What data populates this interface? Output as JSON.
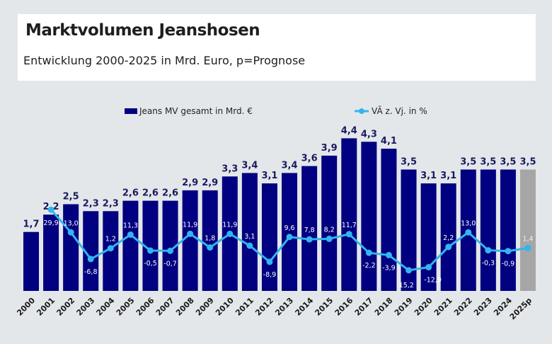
{
  "header": {
    "title": "Marktvolumen Jeanshosen",
    "subtitle": "Entwicklung 2000-2025 in Mrd. Euro, p=Prognose"
  },
  "chart_data": {
    "type": "bar",
    "title": "Marktvolumen Jeanshosen",
    "subtitle": "Entwicklung 2000-2025 in Mrd. Euro, p=Prognose",
    "categories": [
      "2000",
      "2001",
      "2002",
      "2003",
      "2004",
      "2005",
      "2006",
      "2007",
      "2008",
      "2009",
      "2010",
      "2011",
      "2012",
      "2013",
      "2014",
      "2015",
      "2016",
      "2017",
      "2018",
      "2019",
      "2020",
      "2021",
      "2022",
      "2023",
      "2024",
      "2025p"
    ],
    "series": [
      {
        "name": "Jeans MV gesamt in Mrd. €",
        "type": "bar",
        "color": "#000080",
        "forecast_color": "#a6a6a6",
        "values": [
          1.7,
          2.2,
          2.5,
          2.3,
          2.3,
          2.6,
          2.6,
          2.6,
          2.9,
          2.9,
          3.3,
          3.4,
          3.1,
          3.4,
          3.6,
          3.9,
          4.4,
          4.3,
          4.1,
          3.5,
          3.1,
          3.1,
          3.5,
          3.5,
          3.5,
          3.5
        ]
      },
      {
        "name": "VÃ z. Vj. in %",
        "type": "line",
        "color": "#33b5ee",
        "values": [
          null,
          29.9,
          13.0,
          -6.8,
          1.2,
          11.3,
          -0.5,
          -0.7,
          11.9,
          1.8,
          11.9,
          3.1,
          -8.9,
          9.6,
          7.8,
          8.2,
          11.7,
          -2.2,
          -3.9,
          -15.2,
          -12.9,
          2.2,
          13.0,
          -0.3,
          -0.9,
          1.4
        ]
      }
    ],
    "legend": "top-center",
    "grid": false
  }
}
